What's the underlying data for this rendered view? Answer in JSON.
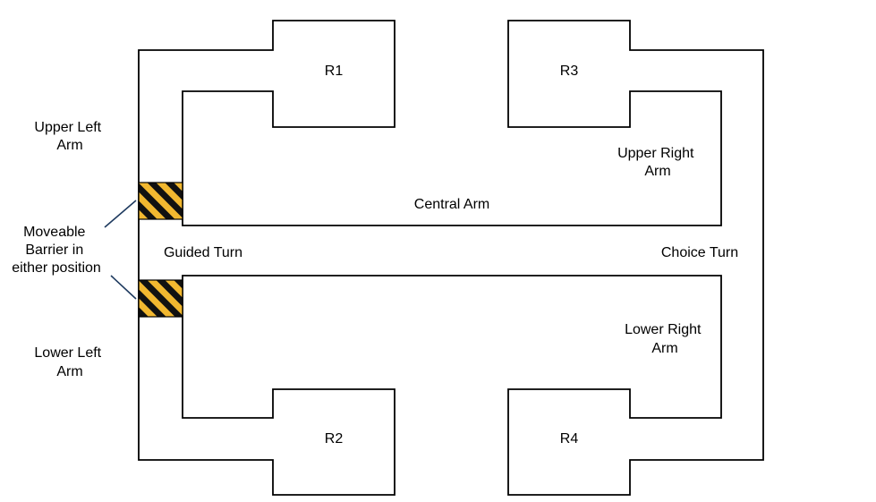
{
  "reward_zones": {
    "r1": "R1",
    "r2": "R2",
    "r3": "R3",
    "r4": "R4"
  },
  "arms": {
    "upper_left": [
      "Upper Left",
      "Arm"
    ],
    "lower_left": [
      "Lower Left",
      "Arm"
    ],
    "upper_right": [
      "Upper Right",
      "Arm"
    ],
    "lower_right": [
      "Lower Right",
      "Arm"
    ],
    "central": "Central Arm"
  },
  "turns": {
    "guided": "Guided Turn",
    "choice": "Choice Turn"
  },
  "barrier": {
    "label": [
      "Moveable",
      "Barrier in",
      "either position"
    ],
    "colors": {
      "stripe_light": "#f2b830",
      "stripe_dark": "#111111"
    }
  }
}
